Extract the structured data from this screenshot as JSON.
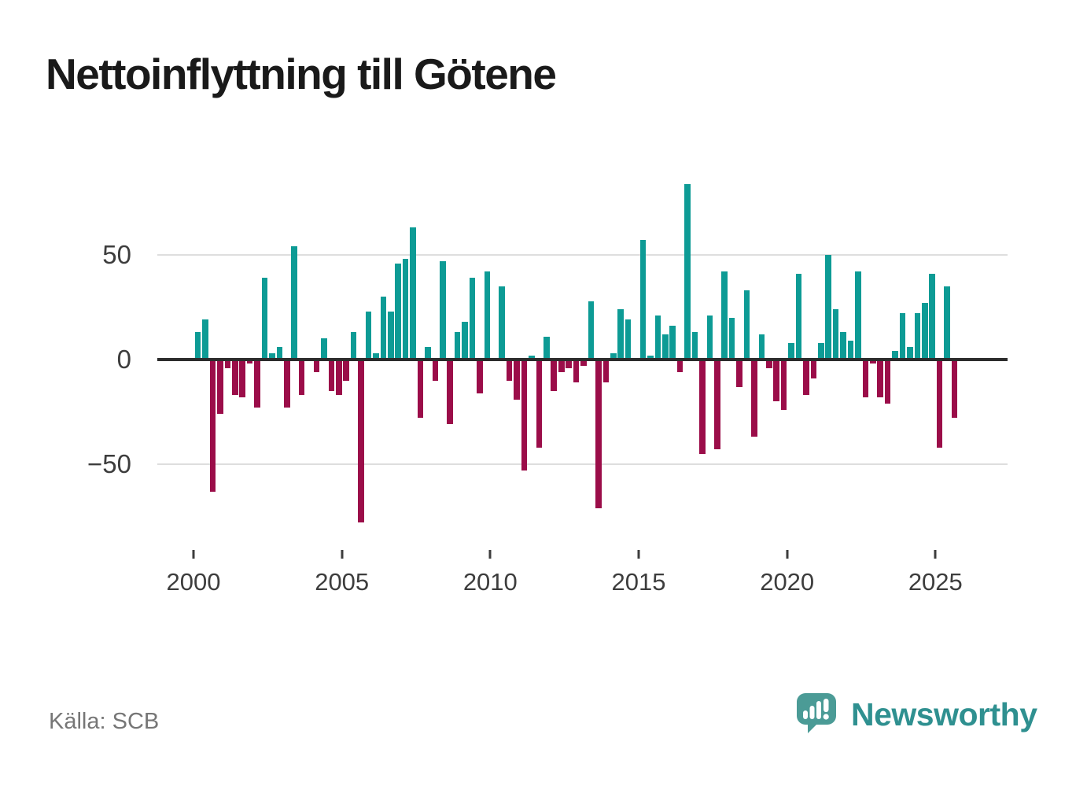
{
  "title": "Nettoinflyttning till Götene",
  "source": "Källa: SCB",
  "branding": {
    "name": "Newsworthy",
    "logo_icon": "speech-bubble-bar-chart-exclamation"
  },
  "colors": {
    "positive": "#0d9b95",
    "negative": "#9b0d49",
    "title": "#1a1a1a",
    "axis_text": "#3d3d3d",
    "gridline": "#dedede",
    "zero_line": "#2c2c2c",
    "source_text": "#767676",
    "brand_teal": "#2f9090",
    "logo_bubble": "#4b9b96"
  },
  "chart_data": {
    "type": "bar",
    "title": "Nettoinflyttning till Götene",
    "frequency": "quarterly",
    "xlabel": "",
    "ylabel": "",
    "grid": "horizontal",
    "legend": "none",
    "ylim": [
      -85,
      90
    ],
    "y_tick_values": [
      50,
      0,
      -50
    ],
    "y_tick_labels": [
      "50",
      "0",
      "−50"
    ],
    "x_tick_labels": [
      "2000",
      "2005",
      "2010",
      "2015",
      "2020",
      "2025"
    ],
    "quarters": [
      "2000Q1",
      "2000Q2",
      "2000Q3",
      "2000Q4",
      "2001Q1",
      "2001Q2",
      "2001Q3",
      "2001Q4",
      "2002Q1",
      "2002Q2",
      "2002Q3",
      "2002Q4",
      "2003Q1",
      "2003Q2",
      "2003Q3",
      "2003Q4",
      "2004Q1",
      "2004Q2",
      "2004Q3",
      "2004Q4",
      "2005Q1",
      "2005Q2",
      "2005Q3",
      "2005Q4",
      "2006Q1",
      "2006Q2",
      "2006Q3",
      "2006Q4",
      "2007Q1",
      "2007Q2",
      "2007Q3",
      "2007Q4",
      "2008Q1",
      "2008Q2",
      "2008Q3",
      "2008Q4",
      "2009Q1",
      "2009Q2",
      "2009Q3",
      "2009Q4",
      "2010Q1",
      "2010Q2",
      "2010Q3",
      "2010Q4",
      "2011Q1",
      "2011Q2",
      "2011Q3",
      "2011Q4",
      "2012Q1",
      "2012Q2",
      "2012Q3",
      "2012Q4",
      "2013Q1",
      "2013Q2",
      "2013Q3",
      "2013Q4",
      "2014Q1",
      "2014Q2",
      "2014Q3",
      "2014Q4",
      "2015Q1",
      "2015Q2",
      "2015Q3",
      "2015Q4",
      "2016Q1",
      "2016Q2",
      "2016Q3",
      "2016Q4",
      "2017Q1",
      "2017Q2",
      "2017Q3",
      "2017Q4",
      "2018Q1",
      "2018Q2",
      "2018Q3",
      "2018Q4",
      "2019Q1",
      "2019Q2",
      "2019Q3",
      "2019Q4",
      "2020Q1",
      "2020Q2",
      "2020Q3",
      "2020Q4",
      "2021Q1",
      "2021Q2",
      "2021Q3",
      "2021Q4",
      "2022Q1",
      "2022Q2",
      "2022Q3",
      "2022Q4",
      "2023Q1",
      "2023Q2",
      "2023Q3",
      "2023Q4",
      "2024Q1",
      "2024Q2",
      "2024Q3",
      "2024Q4",
      "2025Q1",
      "2025Q2",
      "2025Q3"
    ],
    "values": [
      13,
      19,
      -63,
      -26,
      -4,
      -17,
      -18,
      -2,
      -23,
      39,
      3,
      6,
      -23,
      54,
      -17,
      0,
      -6,
      10,
      -15,
      -17,
      -10,
      13,
      -78,
      23,
      3,
      30,
      23,
      46,
      48,
      63,
      -28,
      6,
      -10,
      47,
      -31,
      13,
      18,
      39,
      -16,
      42,
      0,
      35,
      -10,
      -19,
      -53,
      2,
      -42,
      11,
      -15,
      -6,
      -4,
      -11,
      -3,
      28,
      -71,
      -11,
      3,
      24,
      19,
      0,
      57,
      2,
      21,
      12,
      16,
      -6,
      84,
      13,
      -45,
      21,
      -43,
      42,
      20,
      -13,
      33,
      -37,
      12,
      -4,
      -20,
      -24,
      8,
      41,
      -17,
      -9,
      8,
      50,
      24,
      13,
      9,
      42,
      -18,
      -2,
      -18,
      -21,
      4,
      22,
      6,
      22,
      27,
      41,
      -42,
      35,
      -28
    ]
  }
}
